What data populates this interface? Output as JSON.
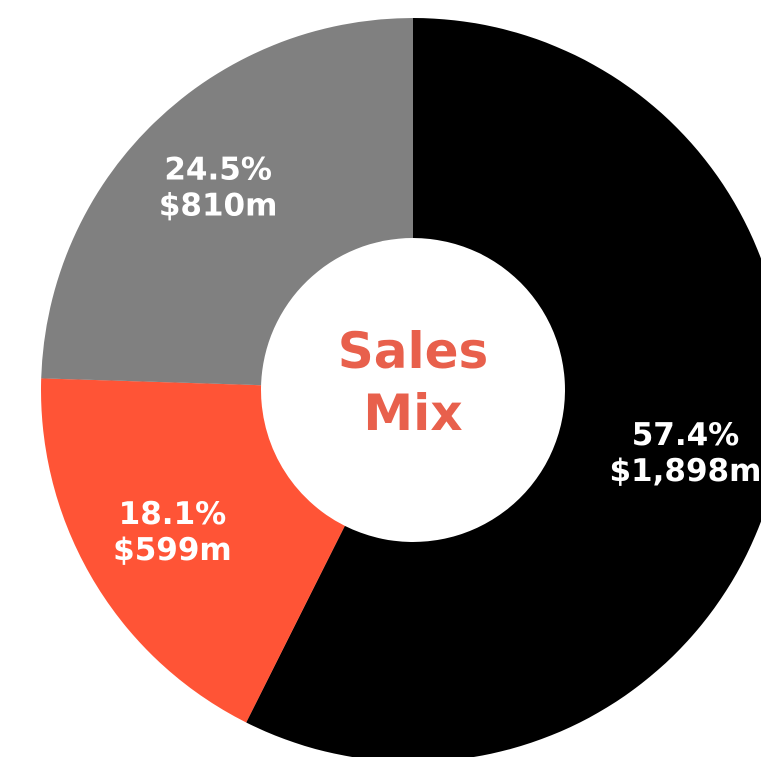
{
  "chart_data": {
    "type": "donut",
    "title": "Sales Mix",
    "values": [
      57.4,
      18.1,
      24.5
    ],
    "value_labels": [
      "57.4%",
      "18.1%",
      "24.5%"
    ],
    "amounts": [
      1898,
      599,
      810
    ],
    "amount_labels": [
      "$1,898m",
      "$599m",
      "$810m"
    ],
    "colors": [
      "#000000",
      "#ff5436",
      "#808080"
    ]
  }
}
